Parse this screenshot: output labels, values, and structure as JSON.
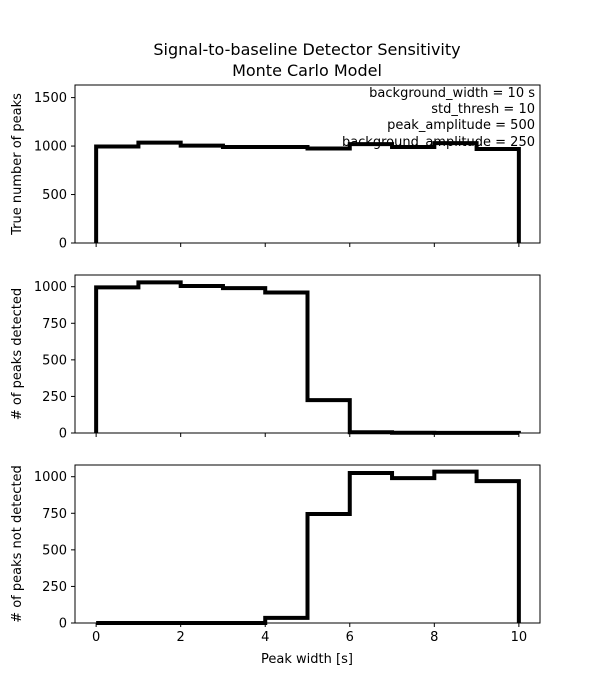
{
  "chart_data": {
    "type": "step",
    "title_line1": "Signal-to-baseline Detector Sensitivity",
    "title_line2": "Monte Carlo Model",
    "xlabel": "Peak width [s]",
    "xlim": [
      -0.5,
      10.5
    ],
    "xticks": [
      "0",
      "2",
      "4",
      "6",
      "8",
      "10"
    ],
    "bin_edges": [
      0,
      1,
      2,
      3,
      4,
      5,
      6,
      7,
      8,
      9,
      10
    ],
    "annotations": [
      "background_width = 10 s",
      "std_thresh = 10",
      "peak_amplitude = 500",
      "background_amplitude = 250"
    ],
    "panels": [
      {
        "ylabel": "True number of peaks",
        "ylim": [
          0,
          1630
        ],
        "yticks": [
          "0",
          "500",
          "1000",
          "1500"
        ],
        "values": [
          995,
          1035,
          1005,
          990,
          990,
          975,
          1020,
          990,
          1030,
          970
        ]
      },
      {
        "ylabel": "# of peaks detected",
        "ylim": [
          0,
          1080
        ],
        "yticks": [
          "0",
          "250",
          "500",
          "750",
          "1000"
        ],
        "values": [
          995,
          1030,
          1005,
          990,
          960,
          225,
          5,
          2,
          1,
          1
        ]
      },
      {
        "ylabel": "# of peaks not detected",
        "ylim": [
          0,
          1080
        ],
        "yticks": [
          "0",
          "250",
          "500",
          "750",
          "1000"
        ],
        "values": [
          0,
          0,
          0,
          0,
          35,
          745,
          1025,
          990,
          1035,
          970
        ]
      }
    ]
  }
}
